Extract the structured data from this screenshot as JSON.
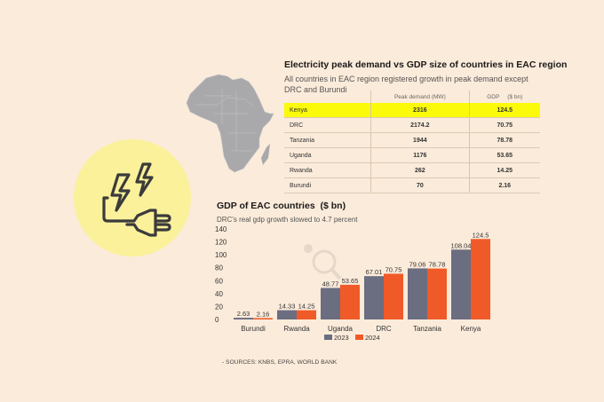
{
  "table": {
    "title": "Electricity peak demand vs GDP size of countries in EAC region",
    "subtitle": "All countries in EAC region registered growth in peak demand except DRC and Burundi",
    "headers": [
      "",
      "Peak demand (MW)",
      "GDP     ($ bn)"
    ],
    "highlight_color": "#fafa0a",
    "rows": [
      {
        "country": "Kenya",
        "peak_demand": "2316",
        "gdp": "124.5",
        "highlight": true
      },
      {
        "country": "DRC",
        "peak_demand": "2174.2",
        "gdp": "70.75",
        "highlight": false
      },
      {
        "country": "Tanzania",
        "peak_demand": "1944",
        "gdp": "78.78",
        "highlight": false
      },
      {
        "country": "Uganda",
        "peak_demand": "1176",
        "gdp": "53.65",
        "highlight": false
      },
      {
        "country": "Rwanda",
        "peak_demand": "262",
        "gdp": "14.25",
        "highlight": false
      },
      {
        "country": "Burundi",
        "peak_demand": "70",
        "gdp": "2.16",
        "highlight": false
      }
    ]
  },
  "icons": {
    "main": "electric-plug-lightning-icon",
    "map": "africa-map"
  },
  "chart_data": {
    "type": "bar",
    "title": "GDP of EAC countries  ($ bn)",
    "subtitle": "DRC's real gdp growth slowed to 4.7 percent",
    "xlabel": "",
    "ylabel": "",
    "categories": [
      "Burundi",
      "Rwanda",
      "Uganda",
      "DRC",
      "Tanzania",
      "Kenya"
    ],
    "series": [
      {
        "name": "2023",
        "color": "#6b6d80",
        "values": [
          2.63,
          14.33,
          48.77,
          67.01,
          79.06,
          108.04
        ]
      },
      {
        "name": "2024",
        "color": "#f05a28",
        "values": [
          2.16,
          14.25,
          53.65,
          70.75,
          78.78,
          124.5
        ]
      }
    ],
    "yticks": [
      0,
      20,
      40,
      60,
      80,
      100,
      120,
      140
    ],
    "ylim": [
      0,
      140
    ],
    "grid": false,
    "legend": "bottom-center"
  },
  "sources": "- SOURCES: KNBS, EPRA, WORLD BANK"
}
